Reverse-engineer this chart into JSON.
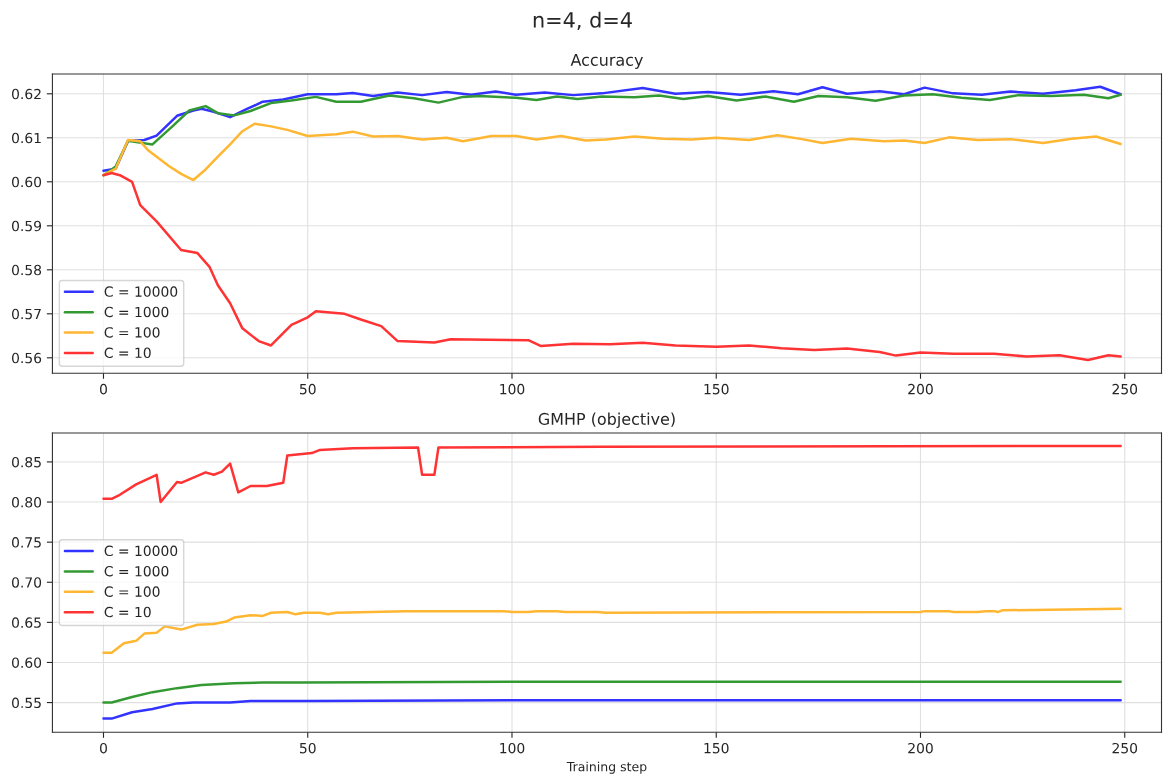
{
  "chart_data": [
    {
      "type": "line",
      "title": "n=4, d=4",
      "subtitle": "Accuracy",
      "xlim": [
        -12.5,
        259
      ],
      "xticks": [
        0,
        50,
        100,
        150,
        200,
        250
      ],
      "ylim": [
        0.5565,
        0.6245
      ],
      "yticks": [
        0.56,
        0.57,
        0.58,
        0.59,
        {
          "value": 0.6,
          "label": "0.60"
        },
        0.61,
        0.62
      ],
      "grid": true,
      "legend": "bottom left",
      "series": [
        {
          "name": "C = 10000",
          "color": "#3333ff",
          "x": [
            0,
            3,
            6,
            10,
            13,
            18,
            22,
            24,
            27,
            31,
            35,
            39,
            44,
            50,
            57,
            61,
            66,
            72,
            78,
            84,
            90,
            96,
            101,
            108,
            115,
            122,
            132,
            140,
            148,
            156,
            164,
            170,
            176,
            182,
            190,
            196,
            201,
            208,
            215,
            222,
            230,
            238,
            244,
            249
          ],
          "values": [
            0.6025,
            0.603,
            0.6093,
            0.6095,
            0.6105,
            0.615,
            0.6162,
            0.6166,
            0.6159,
            0.6147,
            0.6165,
            0.6182,
            0.6187,
            0.6199,
            0.6199,
            0.6202,
            0.6195,
            0.6203,
            0.6197,
            0.6204,
            0.6198,
            0.6205,
            0.6198,
            0.6203,
            0.6197,
            0.6201,
            0.6213,
            0.62,
            0.6204,
            0.6198,
            0.6206,
            0.6199,
            0.6215,
            0.62,
            0.6206,
            0.6199,
            0.6214,
            0.6201,
            0.6198,
            0.6205,
            0.62,
            0.6208,
            0.6216,
            0.6199
          ]
        },
        {
          "name": "C = 1000",
          "color": "#339933",
          "x": [
            0,
            3,
            6,
            12,
            17,
            21,
            25,
            28,
            32,
            36,
            41,
            46,
            52,
            57,
            63,
            70,
            76,
            82,
            88,
            92,
            101,
            106,
            111,
            116,
            122,
            130,
            136,
            142,
            148,
            155,
            162,
            169,
            175,
            182,
            189,
            196,
            203,
            210,
            217,
            224,
            232,
            240,
            246,
            249
          ],
          "values": [
            0.6015,
            0.6035,
            0.6093,
            0.6085,
            0.6127,
            0.6162,
            0.6172,
            0.6156,
            0.6151,
            0.6161,
            0.6179,
            0.6185,
            0.6193,
            0.6182,
            0.6182,
            0.6196,
            0.619,
            0.618,
            0.6193,
            0.6195,
            0.6191,
            0.6186,
            0.6194,
            0.6188,
            0.6194,
            0.6192,
            0.6196,
            0.6188,
            0.6195,
            0.6185,
            0.6194,
            0.6182,
            0.6195,
            0.6192,
            0.6184,
            0.6196,
            0.6199,
            0.6191,
            0.6186,
            0.6197,
            0.6195,
            0.6198,
            0.619,
            0.6198
          ]
        },
        {
          "name": "C = 100",
          "color": "#ffb733",
          "x": [
            0,
            3,
            6,
            9,
            11,
            16,
            19,
            22,
            25,
            28,
            31,
            34,
            37,
            41,
            45,
            50,
            57,
            61,
            66,
            72,
            78,
            84,
            88,
            95,
            101,
            106,
            112,
            118,
            123,
            130,
            137,
            144,
            150,
            158,
            165,
            171,
            176,
            183,
            191,
            196,
            201,
            207,
            214,
            222,
            230,
            237,
            243,
            249
          ],
          "values": [
            0.6015,
            0.603,
            0.6095,
            0.6092,
            0.6071,
            0.6036,
            0.6018,
            0.6004,
            0.6028,
            0.6057,
            0.6085,
            0.6115,
            0.6132,
            0.6126,
            0.6118,
            0.6104,
            0.6108,
            0.6114,
            0.6103,
            0.6104,
            0.6096,
            0.61,
            0.6092,
            0.6104,
            0.6104,
            0.6096,
            0.6104,
            0.6094,
            0.6096,
            0.6103,
            0.6098,
            0.6096,
            0.61,
            0.6095,
            0.6106,
            0.6097,
            0.6088,
            0.6098,
            0.6092,
            0.6094,
            0.6088,
            0.6101,
            0.6095,
            0.6097,
            0.6088,
            0.6098,
            0.6103,
            0.6086
          ]
        },
        {
          "name": "C = 10",
          "color": "#ff3333",
          "x": [
            0,
            2,
            4,
            7,
            9,
            13,
            19,
            23,
            26,
            28,
            31,
            34,
            38,
            41,
            46,
            50,
            52,
            59,
            63,
            68,
            72,
            81,
            85,
            94,
            104,
            107,
            115,
            124,
            132,
            140,
            150,
            158,
            166,
            174,
            182,
            190,
            194,
            200,
            208,
            218,
            226,
            234,
            241,
            246,
            249
          ],
          "values": [
            0.6015,
            0.602,
            0.6015,
            0.6,
            0.5947,
            0.591,
            0.5845,
            0.5838,
            0.5806,
            0.5765,
            0.5724,
            0.5667,
            0.5638,
            0.5628,
            0.5675,
            0.5692,
            0.5706,
            0.57,
            0.5687,
            0.5672,
            0.5638,
            0.5635,
            0.5642,
            0.5641,
            0.564,
            0.5627,
            0.5632,
            0.5631,
            0.5634,
            0.5628,
            0.5625,
            0.5628,
            0.5622,
            0.5618,
            0.5621,
            0.5613,
            0.5605,
            0.5612,
            0.5609,
            0.5609,
            0.5603,
            0.5606,
            0.5595,
            0.5606,
            0.5603
          ]
        }
      ]
    },
    {
      "type": "line",
      "title": "GMHP (objective)",
      "xlabel": "Training step",
      "xlim": [
        -12.5,
        259
      ],
      "xticks": [
        0,
        50,
        100,
        150,
        200,
        250
      ],
      "ylim": [
        0.513,
        0.886
      ],
      "yticks": [
        0.55,
        {
          "value": 0.6,
          "label": "0.60"
        },
        0.65,
        {
          "value": 0.7,
          "label": "0.70"
        },
        0.75,
        {
          "value": 0.8,
          "label": "0.80"
        },
        0.85
      ],
      "grid": true,
      "legend": "left",
      "series": [
        {
          "name": "C = 10000",
          "color": "#3333ff",
          "x": [
            0,
            2,
            7,
            12,
            18,
            22,
            31,
            36,
            50,
            100,
            249
          ],
          "values": [
            0.53,
            0.53,
            0.538,
            0.542,
            0.549,
            0.55,
            0.55,
            0.552,
            0.552,
            0.553,
            0.553
          ]
        },
        {
          "name": "C = 1000",
          "color": "#339933",
          "x": [
            0,
            2,
            7,
            12,
            18,
            24,
            32,
            39,
            48,
            100,
            249
          ],
          "values": [
            0.55,
            0.55,
            0.557,
            0.563,
            0.568,
            0.572,
            0.574,
            0.575,
            0.575,
            0.576,
            0.576
          ]
        },
        {
          "name": "C = 100",
          "color": "#ffb733",
          "x": [
            0,
            2,
            5,
            8,
            10,
            13,
            15,
            19,
            23,
            27,
            30,
            32,
            36,
            39,
            41,
            45,
            47,
            49,
            53,
            55,
            57,
            74,
            98,
            100,
            104,
            106,
            111,
            113,
            121,
            123,
            200,
            201,
            207,
            208,
            214,
            216,
            218,
            219,
            220,
            249
          ],
          "values": [
            0.612,
            0.612,
            0.624,
            0.627,
            0.636,
            0.637,
            0.645,
            0.641,
            0.647,
            0.648,
            0.651,
            0.656,
            0.659,
            0.658,
            0.662,
            0.663,
            0.66,
            0.662,
            0.662,
            0.66,
            0.662,
            0.664,
            0.664,
            0.663,
            0.663,
            0.664,
            0.664,
            0.663,
            0.663,
            0.662,
            0.663,
            0.664,
            0.664,
            0.663,
            0.663,
            0.664,
            0.664,
            0.663,
            0.665,
            0.667
          ]
        },
        {
          "name": "C = 10",
          "color": "#ff3333",
          "x": [
            0,
            2,
            4,
            8,
            13,
            14,
            18,
            19,
            25,
            27,
            29,
            31,
            33,
            36,
            40,
            44,
            45,
            51,
            53,
            61,
            77,
            78,
            81,
            82,
            122,
            249
          ],
          "values": [
            0.804,
            0.804,
            0.809,
            0.822,
            0.834,
            0.8,
            0.825,
            0.824,
            0.837,
            0.834,
            0.838,
            0.848,
            0.812,
            0.82,
            0.82,
            0.824,
            0.858,
            0.861,
            0.865,
            0.867,
            0.868,
            0.834,
            0.834,
            0.868,
            0.869,
            0.87
          ]
        }
      ]
    }
  ]
}
